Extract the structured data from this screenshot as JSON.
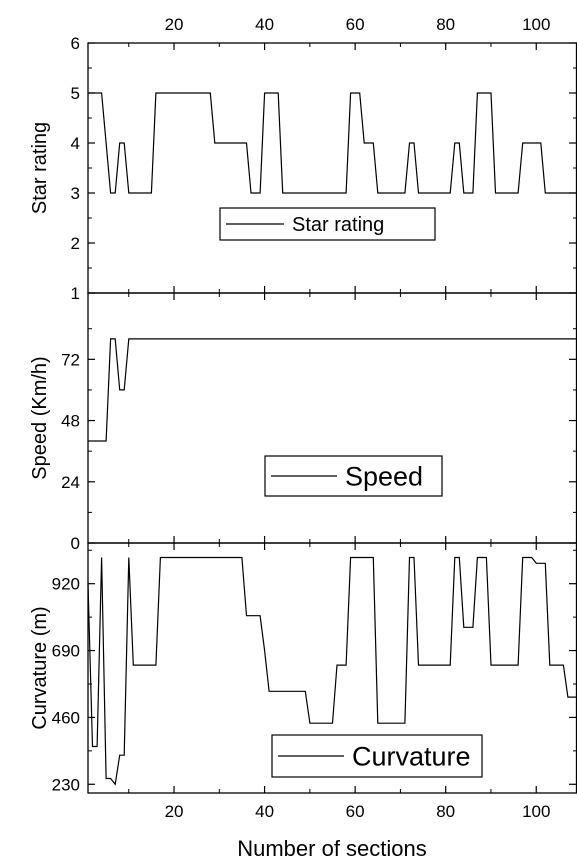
{
  "x_axis": {
    "label": "Number of sections",
    "ticks": [
      20,
      40,
      60,
      80,
      100
    ],
    "range": [
      1,
      109
    ]
  },
  "chart_data": [
    {
      "type": "line",
      "ylabel": "Star rating",
      "ylim": [
        1,
        6
      ],
      "yticks": [
        1,
        2,
        3,
        4,
        5,
        6
      ],
      "legend": {
        "label": "Star rating",
        "placement": "center"
      },
      "series": [
        {
          "name": "Star rating",
          "x": [
            1,
            4,
            5,
            6,
            7,
            8,
            9,
            10,
            11,
            14,
            15,
            16,
            28,
            29,
            36,
            37,
            38,
            39,
            40,
            43,
            44,
            58,
            59,
            61,
            62,
            64,
            65,
            71,
            72,
            73,
            74,
            81,
            82,
            83,
            84,
            86,
            87,
            90,
            91,
            96,
            97,
            101,
            102,
            109
          ],
          "y": [
            5,
            5,
            4,
            3,
            3,
            4,
            4,
            3,
            3,
            3,
            3,
            5,
            5,
            4,
            4,
            3,
            3,
            3,
            5,
            5,
            3,
            3,
            5,
            5,
            4,
            4,
            3,
            3,
            4,
            4,
            3,
            3,
            4,
            4,
            3,
            3,
            5,
            5,
            3,
            3,
            4,
            4,
            3,
            3
          ]
        }
      ]
    },
    {
      "type": "line",
      "ylabel": "Speed (Km/h)",
      "ylim": [
        0,
        98
      ],
      "yticks": [
        0,
        24,
        48,
        72
      ],
      "legend": {
        "label": "Speed",
        "placement": "center"
      },
      "series": [
        {
          "name": "Speed",
          "x": [
            1,
            4,
            5,
            6,
            7,
            8,
            9,
            10,
            109
          ],
          "y": [
            40,
            40,
            40,
            80,
            80,
            60,
            60,
            80,
            80
          ]
        }
      ]
    },
    {
      "type": "line",
      "ylabel": "Curvature (m)",
      "ylim": [
        200,
        1060
      ],
      "yticks": [
        230,
        460,
        690,
        920
      ],
      "legend": {
        "label": "Curvature",
        "placement": "bottom-center"
      },
      "series": [
        {
          "name": "Curvature",
          "x": [
            1,
            2,
            3,
            4,
            5,
            6,
            7,
            8,
            9,
            10,
            11,
            15,
            16,
            17,
            35,
            36,
            39,
            40,
            41,
            49,
            50,
            55,
            56,
            58,
            59,
            64,
            65,
            71,
            72,
            73,
            74,
            81,
            82,
            83,
            84,
            86,
            87,
            89,
            90,
            96,
            97,
            99,
            100,
            102,
            103,
            106,
            107,
            109
          ],
          "y": [
            920,
            360,
            360,
            1010,
            250,
            250,
            230,
            330,
            330,
            1010,
            640,
            640,
            640,
            1010,
            1010,
            810,
            810,
            690,
            550,
            550,
            440,
            440,
            640,
            640,
            1010,
            1010,
            440,
            440,
            1010,
            1010,
            640,
            640,
            1010,
            1010,
            770,
            770,
            1010,
            1010,
            640,
            640,
            1010,
            1010,
            990,
            990,
            640,
            640,
            530,
            530
          ]
        }
      ]
    }
  ]
}
